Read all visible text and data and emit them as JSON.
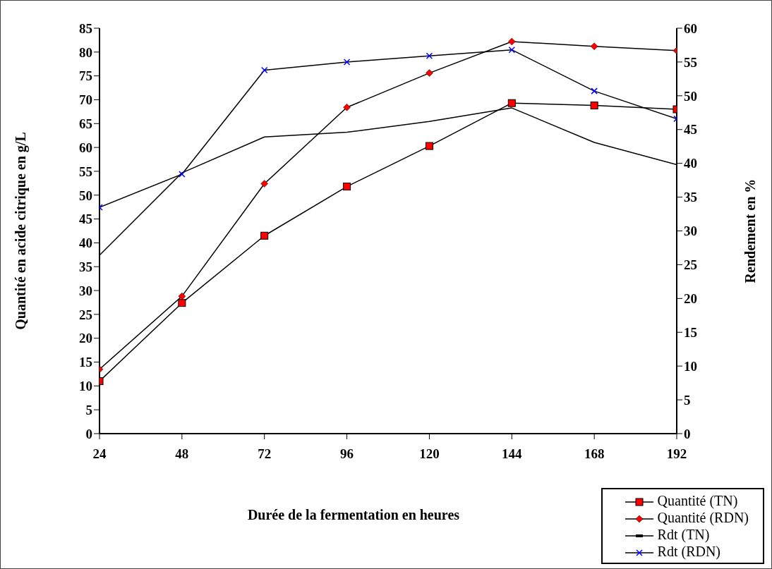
{
  "chart_data": {
    "type": "line",
    "xlabel": "Durée de la fermentation en heures",
    "ylabel": "Quantité en acide citrique en g/L",
    "y2label": "Rendement en %",
    "x": [
      24,
      48,
      72,
      96,
      120,
      144,
      168,
      192
    ],
    "series": [
      {
        "name": "Quantité (TN)",
        "color": "#ff0000",
        "marker": "square",
        "values": [
          11.0,
          27.4,
          41.5,
          51.8,
          60.3,
          69.3,
          68.8,
          68.0
        ]
      },
      {
        "name": "Quantité (RDN)",
        "color": "#ff0000",
        "marker": "diamond",
        "values": [
          13.5,
          28.8,
          52.4,
          68.4,
          75.6,
          82.2,
          81.2,
          80.3
        ]
      },
      {
        "name": "Rdt (TN)",
        "color": "#000000",
        "marker": "none",
        "axis": "y2",
        "values": [
          26.4,
          38.6,
          43.9,
          44.6,
          46.2,
          48.2,
          43.1,
          39.8
        ]
      },
      {
        "name": "Rdt (RDN)",
        "color": "#0000ff",
        "marker": "cross",
        "axis": "y2",
        "values": [
          33.5,
          38.4,
          53.8,
          55.0,
          55.9,
          56.8,
          50.7,
          46.6
        ]
      }
    ],
    "xlim": [
      24,
      192
    ],
    "xticks": [
      24,
      48,
      72,
      96,
      120,
      144,
      168,
      192
    ],
    "ylim": [
      0,
      85
    ],
    "yticks": [
      0,
      5,
      10,
      15,
      20,
      25,
      30,
      35,
      40,
      45,
      50,
      55,
      60,
      65,
      70,
      75,
      80,
      85
    ],
    "y2lim": [
      0,
      60
    ],
    "y2ticks": [
      0,
      5,
      10,
      15,
      20,
      25,
      30,
      35,
      40,
      45,
      50,
      55,
      60
    ],
    "grid": false,
    "legend": "bottom right"
  }
}
